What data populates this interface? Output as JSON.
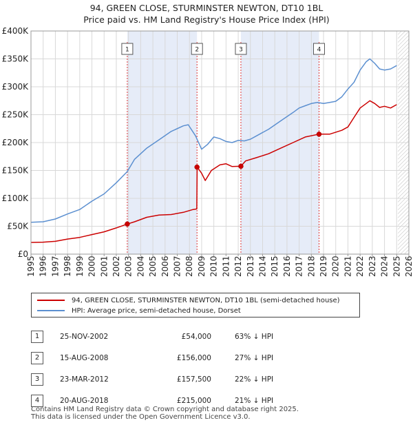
{
  "header": {
    "title_line1": "94, GREEN CLOSE, STURMINSTER NEWTON, DT10 1BL",
    "title_line2": "Price paid vs. HM Land Registry's House Price Index (HPI)"
  },
  "chart_data": {
    "type": "line",
    "title": "94, GREEN CLOSE, STURMINSTER NEWTON, DT10 1BL — Price paid vs. HM Land Registry's House Price Index (HPI)",
    "xlabel": "",
    "ylabel": "",
    "xlim": [
      1995,
      2026
    ],
    "ylim": [
      0,
      400000
    ],
    "x_ticks": [
      "1995",
      "1996",
      "1997",
      "1998",
      "1999",
      "2000",
      "2001",
      "2002",
      "2003",
      "2004",
      "2005",
      "2006",
      "2007",
      "2008",
      "2009",
      "2010",
      "2011",
      "2012",
      "2013",
      "2014",
      "2015",
      "2016",
      "2017",
      "2018",
      "2019",
      "2020",
      "2021",
      "2022",
      "2023",
      "2024",
      "2025",
      "2026"
    ],
    "y_ticks": [
      {
        "value": 0,
        "label": "£0"
      },
      {
        "value": 50000,
        "label": "£50K"
      },
      {
        "value": 100000,
        "label": "£100K"
      },
      {
        "value": 150000,
        "label": "£150K"
      },
      {
        "value": 200000,
        "label": "£200K"
      },
      {
        "value": 250000,
        "label": "£250K"
      },
      {
        "value": 300000,
        "label": "£300K"
      },
      {
        "value": 350000,
        "label": "£350K"
      },
      {
        "value": 400000,
        "label": "£400K"
      }
    ],
    "grid": true,
    "forecast_start": 2025.1,
    "series": [
      {
        "name": "94, GREEN CLOSE, STURMINSTER NEWTON, DT10 1BL (semi-detached house)",
        "color": "#cc0000",
        "x": [
          1995.0,
          1996.0,
          1997.0,
          1998.0,
          1999.0,
          2000.0,
          2001.0,
          2002.0,
          2002.9,
          2003.5,
          2004.5,
          2005.5,
          2006.5,
          2007.5,
          2008.3,
          2008.6,
          2008.63,
          2009.0,
          2009.3,
          2009.8,
          2010.5,
          2011.0,
          2011.5,
          2012.22,
          2012.6,
          2013.5,
          2014.5,
          2015.5,
          2016.5,
          2017.5,
          2018.63,
          2019.5,
          2020.5,
          2021.0,
          2021.5,
          2022.0,
          2022.5,
          2022.8,
          2023.2,
          2023.6,
          2024.0,
          2024.5,
          2025.0
        ],
        "y": [
          21000,
          21500,
          23000,
          27000,
          30000,
          35000,
          40000,
          47000,
          54000,
          58000,
          66000,
          70000,
          71000,
          75000,
          80000,
          81000,
          156000,
          145000,
          132000,
          150000,
          160000,
          162000,
          157000,
          157500,
          167000,
          173000,
          180000,
          190000,
          200000,
          210000,
          215000,
          215000,
          222000,
          228000,
          245000,
          262000,
          270000,
          275000,
          270000,
          263000,
          265000,
          262000,
          268000
        ]
      },
      {
        "name": "HPI: Average price, semi-detached house, Dorset",
        "color": "#5b8fd0",
        "x": [
          1995.0,
          1996.0,
          1997.0,
          1998.0,
          1999.0,
          2000.0,
          2001.0,
          2002.0,
          2002.9,
          2003.5,
          2004.5,
          2005.5,
          2006.5,
          2007.5,
          2007.9,
          2008.5,
          2009.0,
          2009.5,
          2010.0,
          2010.5,
          2011.0,
          2011.5,
          2012.0,
          2012.5,
          2013.0,
          2013.5,
          2014.5,
          2015.5,
          2016.5,
          2017.0,
          2017.5,
          2018.0,
          2018.5,
          2019.0,
          2019.5,
          2020.0,
          2020.5,
          2021.0,
          2021.5,
          2022.0,
          2022.5,
          2022.8,
          2023.2,
          2023.6,
          2024.0,
          2024.5,
          2025.0
        ],
        "y": [
          57000,
          58000,
          63000,
          72000,
          80000,
          95000,
          108000,
          128000,
          148000,
          170000,
          190000,
          205000,
          220000,
          230000,
          232000,
          212000,
          188000,
          197000,
          210000,
          207000,
          202000,
          200000,
          204000,
          203000,
          206000,
          212000,
          224000,
          239000,
          254000,
          262000,
          266000,
          270000,
          272000,
          270000,
          272000,
          274000,
          282000,
          296000,
          308000,
          330000,
          345000,
          350000,
          342000,
          332000,
          330000,
          332000,
          338000
        ]
      }
    ],
    "sales": [
      {
        "id": "1",
        "x": 2002.9,
        "price": 54000
      },
      {
        "id": "2",
        "x": 2008.62,
        "price": 156000
      },
      {
        "id": "3",
        "x": 2012.22,
        "price": 157500
      },
      {
        "id": "4",
        "x": 2018.63,
        "price": 215000
      }
    ]
  },
  "legend": {
    "items": [
      {
        "label": "94, GREEN CLOSE, STURMINSTER NEWTON, DT10 1BL (semi-detached house)",
        "color": "#cc0000"
      },
      {
        "label": "HPI: Average price, semi-detached house, Dorset",
        "color": "#5b8fd0"
      }
    ]
  },
  "table": {
    "rows": [
      {
        "num": "1",
        "date": "25-NOV-2002",
        "price": "£54,000",
        "hpi": "63% ↓ HPI"
      },
      {
        "num": "2",
        "date": "15-AUG-2008",
        "price": "£156,000",
        "hpi": "27% ↓ HPI"
      },
      {
        "num": "3",
        "date": "23-MAR-2012",
        "price": "£157,500",
        "hpi": "22% ↓ HPI"
      },
      {
        "num": "4",
        "date": "20-AUG-2018",
        "price": "£215,000",
        "hpi": "21% ↓ HPI"
      }
    ]
  },
  "footer": {
    "line1": "Contains HM Land Registry data © Crown copyright and database right 2025.",
    "line2": "This data is licensed under the Open Government Licence v3.0."
  }
}
